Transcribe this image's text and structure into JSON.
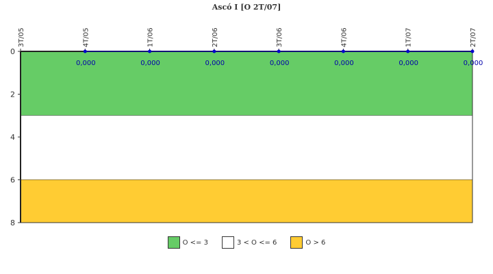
{
  "chart_data": {
    "type": "line",
    "title": "Ascó I [O 2T/07]",
    "xlabel": "",
    "ylabel": "",
    "categories": [
      "3T/05",
      "4T/05",
      "1T/06",
      "2T/06",
      "3T/06",
      "4T/06",
      "1T/07",
      "2T/07"
    ],
    "series": [
      {
        "values": [
          null,
          0,
          0,
          0,
          0,
          0,
          0,
          0
        ],
        "labels": [
          "",
          "0,000",
          "0,000",
          "0,000",
          "0,000",
          "0,000",
          "0,000",
          "0,000"
        ],
        "color": "#0000cc"
      }
    ],
    "y_axis": {
      "min": 0,
      "max": 8,
      "ticks": [
        0,
        2,
        4,
        6,
        8
      ],
      "inverted": true
    },
    "bands": [
      {
        "label": "O <= 3",
        "from": 0,
        "to": 3,
        "color": "#66cc66"
      },
      {
        "label": "3 < O <= 6",
        "from": 3,
        "to": 6,
        "color": "#ffffff"
      },
      {
        "label": "O > 6",
        "from": 6,
        "to": 8,
        "color": "#ffcc33"
      }
    ],
    "x_axis_position": "top",
    "legend_position": "bottom",
    "grid": false
  }
}
